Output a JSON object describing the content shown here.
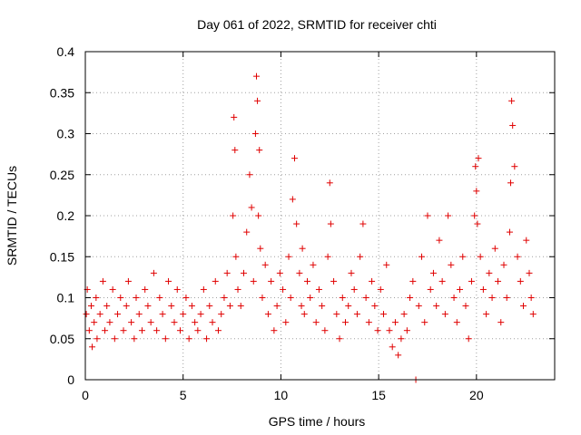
{
  "chart_data": {
    "type": "scatter",
    "title": "Day 061 of 2022, SRMTID for receiver chti",
    "xlabel": "GPS time / hours",
    "ylabel": "SRMTID / TECUs",
    "xlim": [
      0,
      24
    ],
    "ylim": [
      0,
      0.4
    ],
    "xticks": [
      0,
      5,
      10,
      15,
      20
    ],
    "yticks": [
      0,
      0.05,
      0.1,
      0.15,
      0.2,
      0.25,
      0.3,
      0.35,
      0.4
    ],
    "xtick_labels": [
      "0",
      "5",
      "10",
      "15",
      "20"
    ],
    "ytick_labels": [
      "0",
      "0.05",
      "0.1",
      "0.15",
      "0.2",
      "0.25",
      "0.3",
      "0.35",
      "0.4"
    ],
    "grid": true,
    "marker": "+",
    "marker_color": "#e00000",
    "series": [
      {
        "x": [
          0.05,
          0.1,
          0.2,
          0.3,
          0.35,
          0.45,
          0.55,
          0.6,
          0.75,
          0.9,
          1.0,
          1.1,
          1.25,
          1.4,
          1.5,
          1.65,
          1.8,
          1.95,
          2.1,
          2.2,
          2.35,
          2.5,
          2.6,
          2.75,
          2.9,
          3.05,
          3.2,
          3.35,
          3.5,
          3.65,
          3.8,
          3.95,
          4.1,
          4.25,
          4.4,
          4.55,
          4.7,
          4.85,
          5.0,
          5.15,
          5.3,
          5.45,
          5.6,
          5.75,
          5.9,
          6.05,
          6.2,
          6.35,
          6.5,
          6.65,
          6.8,
          6.95,
          7.1,
          7.25,
          7.4,
          7.55,
          7.6,
          7.65,
          7.7,
          7.8,
          7.95,
          8.1,
          8.25,
          8.4,
          8.5,
          8.6,
          8.7,
          8.75,
          8.8,
          8.85,
          8.9,
          8.95,
          9.05,
          9.2,
          9.35,
          9.5,
          9.65,
          9.8,
          9.95,
          10.1,
          10.25,
          10.4,
          10.5,
          10.6,
          10.7,
          10.8,
          10.95,
          11.05,
          11.1,
          11.2,
          11.35,
          11.5,
          11.65,
          11.8,
          11.95,
          12.1,
          12.25,
          12.4,
          12.5,
          12.55,
          12.7,
          12.85,
          13.0,
          13.15,
          13.3,
          13.45,
          13.6,
          13.75,
          13.9,
          14.05,
          14.2,
          14.35,
          14.5,
          14.65,
          14.8,
          14.95,
          15.1,
          15.25,
          15.4,
          15.55,
          15.7,
          15.85,
          16.0,
          16.15,
          16.3,
          16.45,
          16.6,
          16.75,
          16.9,
          17.05,
          17.2,
          17.35,
          17.5,
          17.65,
          17.8,
          17.95,
          18.1,
          18.25,
          18.4,
          18.55,
          18.7,
          18.85,
          19.0,
          19.15,
          19.3,
          19.45,
          19.6,
          19.75,
          19.9,
          19.95,
          20.0,
          20.05,
          20.1,
          20.2,
          20.35,
          20.5,
          20.65,
          20.8,
          20.95,
          21.1,
          21.25,
          21.4,
          21.55,
          21.7,
          21.75,
          21.8,
          21.85,
          21.95,
          22.1,
          22.25,
          22.4,
          22.55,
          22.7,
          22.8,
          22.9
        ],
        "y": [
          0.08,
          0.11,
          0.06,
          0.09,
          0.04,
          0.07,
          0.1,
          0.05,
          0.08,
          0.12,
          0.06,
          0.09,
          0.07,
          0.11,
          0.05,
          0.08,
          0.1,
          0.06,
          0.09,
          0.12,
          0.07,
          0.05,
          0.1,
          0.08,
          0.06,
          0.11,
          0.09,
          0.07,
          0.13,
          0.06,
          0.1,
          0.08,
          0.05,
          0.12,
          0.09,
          0.07,
          0.11,
          0.06,
          0.08,
          0.1,
          0.05,
          0.09,
          0.07,
          0.06,
          0.08,
          0.11,
          0.05,
          0.09,
          0.07,
          0.12,
          0.06,
          0.08,
          0.1,
          0.13,
          0.09,
          0.2,
          0.32,
          0.28,
          0.15,
          0.11,
          0.09,
          0.13,
          0.18,
          0.25,
          0.21,
          0.12,
          0.3,
          0.37,
          0.34,
          0.2,
          0.28,
          0.16,
          0.1,
          0.14,
          0.08,
          0.12,
          0.06,
          0.09,
          0.13,
          0.11,
          0.07,
          0.15,
          0.1,
          0.22,
          0.27,
          0.19,
          0.13,
          0.09,
          0.16,
          0.08,
          0.12,
          0.1,
          0.14,
          0.07,
          0.11,
          0.09,
          0.06,
          0.15,
          0.24,
          0.19,
          0.12,
          0.08,
          0.05,
          0.1,
          0.07,
          0.09,
          0.13,
          0.11,
          0.08,
          0.15,
          0.19,
          0.1,
          0.07,
          0.12,
          0.09,
          0.06,
          0.11,
          0.08,
          0.14,
          0.06,
          0.04,
          0.07,
          0.03,
          0.05,
          0.08,
          0.06,
          0.1,
          0.12,
          0.0,
          0.09,
          0.15,
          0.07,
          0.2,
          0.11,
          0.13,
          0.09,
          0.17,
          0.12,
          0.08,
          0.2,
          0.14,
          0.1,
          0.07,
          0.11,
          0.15,
          0.09,
          0.05,
          0.12,
          0.2,
          0.26,
          0.23,
          0.19,
          0.27,
          0.15,
          0.11,
          0.08,
          0.13,
          0.1,
          0.16,
          0.12,
          0.07,
          0.14,
          0.1,
          0.18,
          0.24,
          0.34,
          0.31,
          0.26,
          0.15,
          0.12,
          0.09,
          0.17,
          0.13,
          0.1,
          0.08
        ]
      }
    ]
  }
}
